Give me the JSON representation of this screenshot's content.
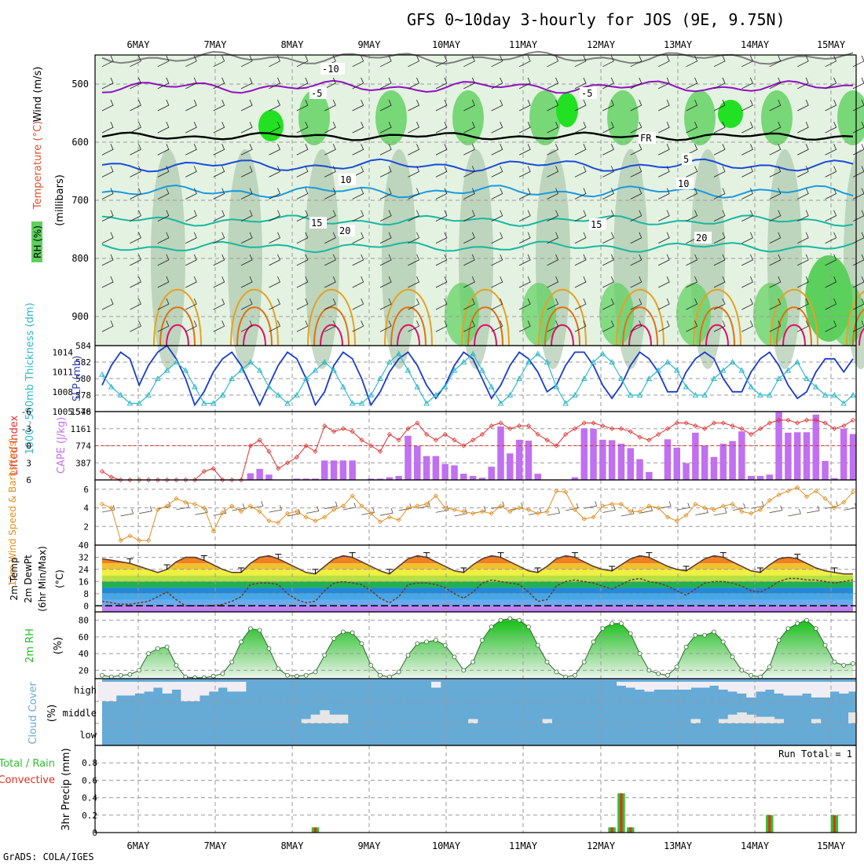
{
  "title": "GFS 0~10day 3-hourly for JOS (9E, 9.75N)",
  "credit": "GrADS: COLA/IGES",
  "colors": {
    "rh_light": "#e4f2e2",
    "rh_mid": "#a8c4a8",
    "rh_green": "#5cd05c",
    "rh_bright": "#22e022",
    "temp_purple": "#9010c0",
    "temp_blue": "#1a4cd8",
    "temp_lightblue": "#1a9ae0",
    "temp_teal": "#18b8a0",
    "temp_orange": "#e8a020",
    "temp_darkorange": "#e07010",
    "temp_magenta": "#e0106a",
    "slp": "#1a3cc8",
    "thickness": "#30b8c8",
    "lifted": "#e03030",
    "cape": "#c070f0",
    "wind10": "#e09020",
    "rh2m": "#22c022",
    "cloud": "#66aad6",
    "cloud_clear": "#f0eef4",
    "precip_total": "#30c030",
    "precip_conv": "#e03020"
  },
  "chart_data": [
    {
      "id": "upper-air",
      "type": "heatmap",
      "x": [
        "6MAY",
        "7MAY",
        "8MAY",
        "9MAY",
        "10MAY",
        "11MAY",
        "12MAY",
        "13MAY",
        "14MAY",
        "15MAY"
      ],
      "ylabel_rh": "RH (%)",
      "ylabel_temp": "Temperature (°C)",
      "ylabel_wind": "Wind (m/s)",
      "ylabel_p": "(millibars)",
      "yticks": [
        "500",
        "600",
        "700",
        "800",
        "900"
      ],
      "ylim": [
        450,
        950
      ],
      "contour_labels": [
        "-10",
        "-5",
        "-5",
        "FR",
        "5",
        "10",
        "10",
        "15",
        "15",
        "20",
        "20"
      ],
      "isotherms_mb": [
        {
          "t": -10,
          "p": 455
        },
        {
          "t": -5,
          "p": 505
        },
        {
          "t": 0,
          "p": 590
        },
        {
          "t": 5,
          "p": 640
        },
        {
          "t": 10,
          "p": 685
        },
        {
          "t": 15,
          "p": 735
        },
        {
          "t": 20,
          "p": 780
        }
      ]
    },
    {
      "id": "slp-thickness",
      "type": "line",
      "ylabel_left": "1000~500mb Thickness (dm)",
      "ylabel_right": "SLP (mb)",
      "yticks_left": [
        "576",
        "578",
        "580",
        "582",
        "584"
      ],
      "yticks_right": [
        "1005",
        "1008",
        "1011",
        "1014"
      ],
      "ylim_left": [
        576,
        584
      ],
      "ylim_right": [
        1005,
        1015
      ],
      "series": [
        {
          "name": "SLP",
          "values": [
            1009,
            1012,
            1014,
            1013,
            1009,
            1012,
            1014,
            1015,
            1013,
            1010,
            1006,
            1008,
            1011,
            1013,
            1014,
            1012,
            1009,
            1006,
            1009,
            1012,
            1014,
            1013,
            1010,
            1006,
            1008,
            1012,
            1014,
            1013,
            1010,
            1006,
            1008,
            1011,
            1013,
            1014,
            1012,
            1009,
            1007,
            1009,
            1012,
            1014,
            1013,
            1010,
            1007,
            1009,
            1012,
            1014,
            1013,
            1011,
            1008,
            1009,
            1012,
            1014,
            1014,
            1012,
            1009,
            1007,
            1009,
            1012,
            1014,
            1013,
            1011,
            1008,
            1008,
            1011,
            1013,
            1014,
            1013,
            1010,
            1008,
            1008,
            1011,
            1013,
            1014,
            1012,
            1009,
            1007,
            1008,
            1011,
            1013,
            1013,
            1011,
            1013
          ]
        },
        {
          "name": "Thickness",
          "values": [
            580.5,
            579,
            578,
            577,
            577,
            578,
            580,
            581,
            582,
            581,
            579,
            577,
            577,
            578,
            580,
            581,
            582,
            581,
            579,
            578,
            577,
            578,
            580,
            581,
            582,
            581,
            579,
            577,
            577,
            578,
            580,
            582,
            583,
            581,
            579,
            577,
            578,
            579,
            581,
            582,
            583,
            581,
            579,
            577,
            578,
            580,
            582,
            583,
            582,
            579,
            577,
            578,
            580,
            582,
            583,
            582,
            580,
            578,
            578,
            580,
            581,
            582,
            581,
            579,
            578,
            578,
            580,
            581,
            582,
            581,
            579,
            578,
            578,
            580,
            581,
            582,
            580,
            579,
            578,
            578,
            577,
            578
          ]
        }
      ]
    },
    {
      "id": "li-cape",
      "type": "bar",
      "ylabel_left": "Lifted Index",
      "ylabel_right": "CAPE (J/kg)",
      "yticks_left": [
        "-6",
        "-3",
        "0",
        "3",
        "6"
      ],
      "yticks_right": [
        "387",
        "774",
        "1161",
        "1548"
      ],
      "ylim_left": [
        6,
        -6
      ],
      "ylim_right": [
        0,
        1548
      ],
      "cape_values": [
        0,
        0,
        0,
        0,
        0,
        0,
        0,
        0,
        0,
        0,
        0,
        0,
        0,
        0,
        0,
        0,
        150,
        250,
        120,
        0,
        0,
        30,
        30,
        30,
        440,
        440,
        440,
        440,
        0,
        30,
        30,
        60,
        90,
        1000,
        770,
        540,
        540,
        360,
        330,
        140,
        90,
        50,
        300,
        1210,
        600,
        910,
        890,
        140,
        0,
        0,
        0,
        60,
        1170,
        1160,
        910,
        900,
        820,
        720,
        470,
        180,
        0,
        920,
        730,
        380,
        1070,
        770,
        520,
        820,
        880,
        1100,
        90,
        90,
        120,
        1548,
        1070,
        1080,
        1080,
        1480,
        430,
        40,
        1160,
        1040
      ],
      "li_values": [
        4.5,
        5.5,
        6,
        6,
        6,
        6,
        6,
        6,
        6,
        6,
        6,
        4.5,
        4,
        6,
        6,
        6,
        0,
        -1,
        1,
        4,
        3,
        2,
        0,
        1,
        -3.5,
        -2.5,
        -3,
        -2.5,
        -1,
        0,
        1,
        -2,
        -1,
        -3,
        -4,
        -2,
        -1,
        -2,
        -1,
        0,
        -1,
        -2,
        -3.5,
        -4,
        -3,
        -3.5,
        -3.5,
        -2,
        -1,
        0,
        -2,
        -3,
        -4,
        -4,
        -3.5,
        -3,
        -3,
        -2.5,
        -1.5,
        -1,
        -2,
        -3,
        -4,
        -4,
        -3.5,
        -3,
        -4,
        -4,
        -3.5,
        -3,
        -2,
        -3,
        -4,
        -4.5,
        -4.5,
        -4,
        -4.5,
        -4.5,
        -4,
        -3,
        -3.5,
        -4.5
      ]
    },
    {
      "id": "wind10",
      "type": "line",
      "ylabel": "10m Wind Speed & Barbs (m/s)",
      "yticks": [
        "2",
        "4",
        "6"
      ],
      "ylim": [
        0,
        7
      ],
      "values": [
        4.4,
        4,
        0.5,
        1,
        0.5,
        0.5,
        3.8,
        4.2,
        5,
        4.6,
        4.4,
        4,
        1.5,
        3.5,
        4.2,
        3.6,
        4.2,
        3.6,
        2.6,
        2.4,
        3.4,
        3.6,
        3,
        2.6,
        3,
        3.8,
        4.2,
        5.3,
        4.2,
        3.4,
        2.5,
        3,
        2.7,
        4,
        4.2,
        4.4,
        5.3,
        4,
        3.8,
        3.6,
        3.4,
        3.6,
        3.4,
        4.2,
        3.6,
        4,
        3.8,
        3.4,
        3.6,
        5.8,
        5.7,
        3.8,
        2.8,
        3,
        4.2,
        4.4,
        4.4,
        3.6,
        3.6,
        4.2,
        4,
        3,
        2.6,
        3.2,
        4.4,
        4,
        3.8,
        4.2,
        4.4,
        3.6,
        3.4,
        3.8,
        4.8,
        5.4,
        5.8,
        6.2,
        5.2,
        5.8,
        5,
        4,
        4.6,
        5.7
      ]
    },
    {
      "id": "temp2m",
      "type": "line",
      "ylabel": "2m Temp 2m DewPt (6hr Min/Max) (°C)",
      "yticks": [
        "0",
        "8",
        "16",
        "24",
        "32",
        "40"
      ],
      "ylim": [
        -4,
        40
      ],
      "temperature_series": "values",
      "dewpoint_series": "dewpoint",
      "values": [
        31,
        30,
        29,
        28,
        26,
        24,
        22,
        24,
        29,
        32,
        32,
        30,
        27,
        24,
        22,
        22,
        28,
        32,
        33,
        31,
        28,
        25,
        22,
        21,
        26,
        31,
        33,
        32,
        29,
        26,
        23,
        21,
        26,
        31,
        33,
        32,
        29,
        26,
        23,
        22,
        27,
        31,
        33,
        32,
        29,
        26,
        23,
        22,
        26,
        31,
        33,
        32,
        29,
        26,
        24,
        23,
        27,
        31,
        33,
        32,
        29,
        26,
        24,
        23,
        27,
        31,
        33,
        32,
        29,
        26,
        23,
        22,
        27,
        31,
        32,
        31,
        28,
        25,
        23,
        22,
        21,
        21
      ],
      "dewpoint": [
        3,
        2,
        1,
        1,
        2,
        3,
        6,
        9,
        4,
        0,
        0,
        0,
        0,
        1,
        3,
        6,
        14,
        15,
        15,
        14,
        8,
        4,
        2,
        3,
        10,
        15,
        16,
        15,
        14,
        10,
        5,
        2,
        6,
        14,
        15,
        15,
        14,
        12,
        8,
        5,
        9,
        15,
        17,
        16,
        15,
        14,
        9,
        3,
        4,
        13,
        16,
        17,
        16,
        15,
        13,
        11,
        14,
        17,
        18,
        16,
        15,
        13,
        10,
        7,
        11,
        15,
        16,
        16,
        15,
        13,
        10,
        9,
        12,
        16,
        18,
        18,
        17,
        17,
        16,
        15,
        16,
        17
      ]
    },
    {
      "id": "rh2m",
      "type": "area",
      "ylabel": "2m RH (%)",
      "yticks": [
        "20",
        "40",
        "60",
        "80"
      ],
      "ylim": [
        10,
        90
      ],
      "values": [
        14,
        12,
        14,
        15,
        20,
        40,
        46,
        48,
        26,
        12,
        11,
        11,
        13,
        16,
        30,
        54,
        70,
        68,
        46,
        22,
        14,
        13,
        14,
        18,
        38,
        58,
        66,
        65,
        52,
        26,
        14,
        12,
        18,
        38,
        52,
        54,
        56,
        50,
        36,
        20,
        30,
        56,
        72,
        80,
        82,
        80,
        72,
        50,
        30,
        18,
        12,
        14,
        30,
        54,
        70,
        76,
        76,
        64,
        40,
        20,
        16,
        14,
        24,
        48,
        62,
        62,
        66,
        54,
        36,
        20,
        14,
        12,
        24,
        56,
        70,
        76,
        80,
        70,
        50,
        30,
        26,
        28
      ]
    },
    {
      "id": "cloud",
      "type": "bar",
      "ylabel": "Cloud Cover (%)",
      "categories": [
        "high",
        "middle",
        "low"
      ],
      "high_clear": [
        1,
        1,
        0.7,
        0.7,
        0.6,
        0.5,
        0.3,
        0.6,
        0.4,
        1,
        1,
        0.7,
        0.5,
        0.3,
        0.5,
        0.5,
        0,
        0,
        0,
        0,
        0,
        0,
        0,
        0,
        0,
        0,
        0,
        0,
        0,
        0,
        0,
        0,
        0,
        0,
        0,
        0,
        0.3,
        0,
        0,
        0,
        0,
        0,
        0,
        0,
        0,
        0,
        0,
        0,
        0,
        0,
        0,
        0,
        0,
        0,
        0,
        0,
        0.2,
        0.3,
        0.4,
        0.5,
        0.4,
        0.4,
        0.4,
        0.4,
        0.3,
        0.3,
        0.2,
        0.4,
        0.5,
        0.6,
        0.8,
        0.5,
        0.4,
        0.6,
        0.7,
        0.7,
        0.6,
        0.8,
        0.8,
        0.5,
        0.6,
        0.5
      ],
      "middle_clear": [
        0,
        0,
        0,
        0,
        0,
        0,
        0,
        0,
        0,
        0,
        0,
        0,
        0,
        0,
        0,
        0,
        0,
        0,
        0,
        0,
        0,
        0,
        0.2,
        0.4,
        0.6,
        0.4,
        0.4,
        0,
        0,
        0,
        0,
        0,
        0,
        0,
        0,
        0,
        0,
        0,
        0,
        0,
        0.2,
        0,
        0,
        0,
        0,
        0,
        0,
        0,
        0.2,
        0,
        0,
        0,
        0,
        0,
        0,
        0,
        0,
        0,
        0,
        0,
        0,
        0,
        0,
        0,
        0.2,
        0,
        0,
        0.2,
        0.4,
        0.5,
        0.4,
        0.3,
        0.3,
        0.2,
        0,
        0,
        0,
        0.2,
        0,
        0,
        0,
        0.5
      ]
    },
    {
      "id": "precip",
      "type": "bar",
      "ylabel": "3hr Precip (mm)",
      "legend": [
        "Total / Rain",
        "Convective"
      ],
      "run_total_label": "Run Total = 1",
      "yticks": [
        "0",
        "0.2",
        "0.4",
        "0.6",
        "0.8"
      ],
      "ylim": [
        0,
        1
      ],
      "total": [
        0,
        0,
        0,
        0,
        0,
        0,
        0,
        0,
        0,
        0,
        0,
        0,
        0,
        0,
        0,
        0,
        0,
        0,
        0,
        0,
        0,
        0,
        0,
        0.06,
        0,
        0,
        0,
        0,
        0,
        0,
        0,
        0,
        0,
        0,
        0,
        0,
        0,
        0,
        0,
        0,
        0,
        0,
        0,
        0,
        0,
        0,
        0,
        0,
        0,
        0,
        0,
        0,
        0,
        0,
        0,
        0.06,
        0.45,
        0.06,
        0,
        0,
        0,
        0,
        0,
        0,
        0,
        0,
        0,
        0,
        0,
        0,
        0,
        0,
        0.2,
        0,
        0,
        0,
        0,
        0,
        0,
        0.2,
        0,
        0
      ],
      "convective": [
        0,
        0,
        0,
        0,
        0,
        0,
        0,
        0,
        0,
        0,
        0,
        0,
        0,
        0,
        0,
        0,
        0,
        0,
        0,
        0,
        0,
        0,
        0,
        0.06,
        0,
        0,
        0,
        0,
        0,
        0,
        0,
        0,
        0,
        0,
        0,
        0,
        0,
        0,
        0,
        0,
        0,
        0,
        0,
        0,
        0,
        0,
        0,
        0,
        0,
        0,
        0,
        0,
        0,
        0,
        0,
        0.06,
        0.45,
        0.06,
        0,
        0,
        0,
        0,
        0,
        0,
        0,
        0,
        0,
        0,
        0,
        0,
        0,
        0,
        0.2,
        0,
        0,
        0,
        0,
        0,
        0,
        0.2,
        0,
        0
      ]
    }
  ]
}
